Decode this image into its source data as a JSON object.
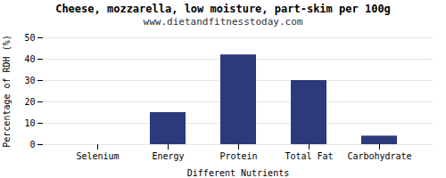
{
  "chart_data": {
    "type": "bar",
    "title": "Cheese, mozzarella, low moisture, part-skim per 100g",
    "subtitle": "www.dietandfitnesstoday.com",
    "xlabel": "Different Nutrients",
    "ylabel": "Percentage of RDH (%)",
    "categories": [
      "Selenium",
      "Energy",
      "Protein",
      "Total Fat",
      "Carbohydrate"
    ],
    "values": [
      0,
      15,
      42,
      30,
      4
    ],
    "color": "#2b3a7a",
    "ylim": [
      0,
      50
    ],
    "yticks": [
      0,
      10,
      20,
      30,
      40,
      50
    ],
    "grid": true
  }
}
